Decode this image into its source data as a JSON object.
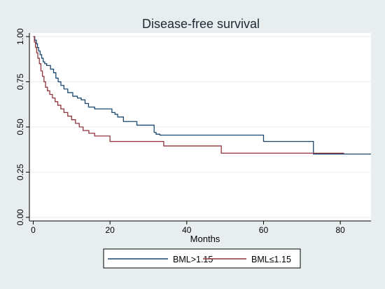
{
  "chart_data": {
    "type": "line",
    "step": true,
    "title": "Disease-free survival",
    "xlabel": "Months",
    "ylabel": "",
    "xlim": [
      -1,
      88
    ],
    "ylim": [
      -0.02,
      1.02
    ],
    "x_ticks": [
      0,
      20,
      40,
      60,
      80
    ],
    "x_tick_labels": [
      "0",
      "20",
      "40",
      "60",
      "80"
    ],
    "y_ticks": [
      0,
      0.25,
      0.5,
      0.75,
      1.0
    ],
    "y_tick_labels": [
      "0.00",
      "0.25",
      "0.50",
      "0.75",
      "1.00"
    ],
    "grid": "horizontal",
    "legend_position": "bottom",
    "series": [
      {
        "name": "BML>1.15",
        "color": "#1a476f",
        "x": [
          0,
          0.4,
          0.8,
          1.1,
          1.4,
          1.8,
          2.2,
          2.6,
          3.0,
          3.5,
          4.5,
          5.3,
          5.9,
          6.5,
          7.2,
          8.0,
          9.0,
          10.3,
          11.5,
          12.5,
          13.5,
          14.4,
          16.0,
          18.5,
          20.5,
          21.3,
          22.0,
          23.5,
          27.0,
          31.5,
          32.0,
          33.0,
          60.0,
          73.0,
          88.0
        ],
        "y": [
          1.0,
          0.98,
          0.96,
          0.94,
          0.92,
          0.9,
          0.88,
          0.86,
          0.85,
          0.84,
          0.82,
          0.8,
          0.77,
          0.75,
          0.73,
          0.71,
          0.69,
          0.67,
          0.66,
          0.65,
          0.63,
          0.61,
          0.6,
          0.6,
          0.58,
          0.57,
          0.555,
          0.53,
          0.51,
          0.47,
          0.46,
          0.455,
          0.42,
          0.35,
          0.35
        ]
      },
      {
        "name": "BML≤1.15",
        "color": "#90353b",
        "x": [
          0,
          0.3,
          0.6,
          0.9,
          1.2,
          1.6,
          2.0,
          2.4,
          2.8,
          3.2,
          3.7,
          4.3,
          5.0,
          5.7,
          6.4,
          7.2,
          8.0,
          9.0,
          10.0,
          11.0,
          12.0,
          13.0,
          14.5,
          16.0,
          20.0,
          28.0,
          34.0,
          49.0,
          81.0
        ],
        "y": [
          1.0,
          0.97,
          0.94,
          0.91,
          0.88,
          0.85,
          0.81,
          0.78,
          0.75,
          0.72,
          0.7,
          0.68,
          0.66,
          0.64,
          0.62,
          0.6,
          0.58,
          0.56,
          0.54,
          0.52,
          0.5,
          0.48,
          0.465,
          0.45,
          0.42,
          0.42,
          0.395,
          0.355,
          0.355
        ]
      }
    ]
  }
}
